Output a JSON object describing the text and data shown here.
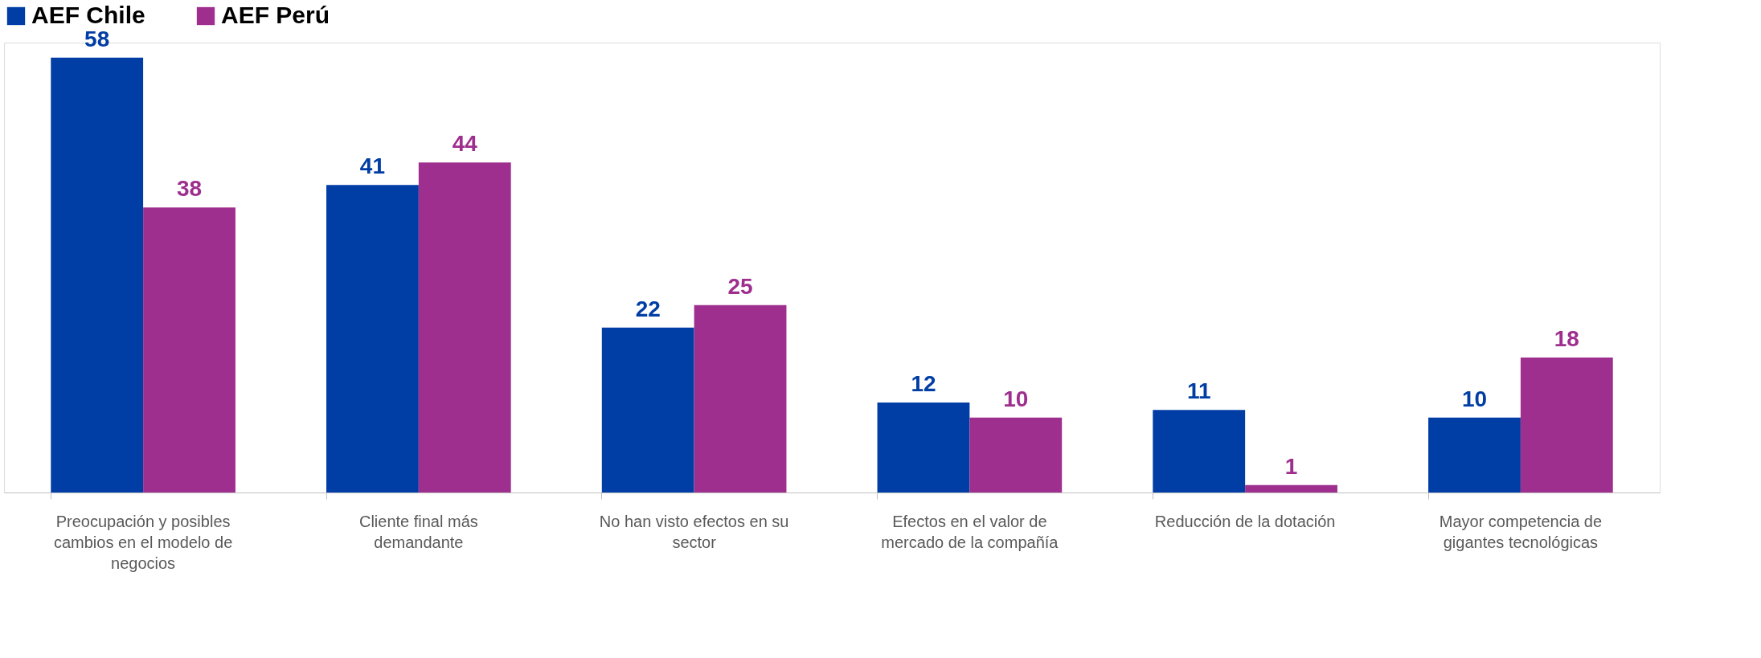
{
  "chart_data": {
    "type": "bar",
    "categories": [
      "Preocupación y posibles cambios en el modelo de negocios",
      "Cliente final más demandante",
      "No han visto efectos en su sector",
      "Efectos en el valor de mercado de la compañía",
      "Reducción de la dotación",
      "Mayor competencia de gigantes tecnológicas"
    ],
    "series": [
      {
        "name": "AEF Chile",
        "color": "#003da5",
        "values": [
          58,
          41,
          22,
          12,
          11,
          10
        ]
      },
      {
        "name": "AEF Perú",
        "color": "#9e2f8e",
        "values": [
          38,
          44,
          25,
          10,
          1,
          18
        ]
      }
    ],
    "data_labels": true,
    "legend": "top",
    "grid": false
  }
}
